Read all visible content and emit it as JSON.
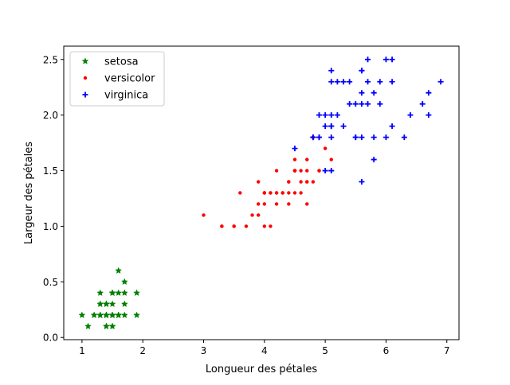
{
  "chart_data": {
    "type": "scatter",
    "title": "",
    "xlabel": "Longueur des pétales",
    "ylabel": "Largeur des pétales",
    "xlim": [
      0.7,
      7.2
    ],
    "ylim": [
      -0.02,
      2.62
    ],
    "xticks": [
      1,
      2,
      3,
      4,
      5,
      6,
      7
    ],
    "yticks": [
      0.0,
      0.5,
      1.0,
      1.5,
      2.0,
      2.5
    ],
    "xtick_labels": [
      "1",
      "2",
      "3",
      "4",
      "5",
      "6",
      "7"
    ],
    "ytick_labels": [
      "0.0",
      "0.5",
      "1.0",
      "1.5",
      "2.0",
      "2.5"
    ],
    "grid": false,
    "legend": "top-left",
    "series": [
      {
        "name": "setosa",
        "color": "#008000",
        "marker": "star",
        "points": [
          [
            1.4,
            0.2
          ],
          [
            1.4,
            0.2
          ],
          [
            1.3,
            0.2
          ],
          [
            1.5,
            0.2
          ],
          [
            1.4,
            0.2
          ],
          [
            1.7,
            0.4
          ],
          [
            1.4,
            0.3
          ],
          [
            1.5,
            0.2
          ],
          [
            1.4,
            0.2
          ],
          [
            1.5,
            0.1
          ],
          [
            1.5,
            0.2
          ],
          [
            1.6,
            0.2
          ],
          [
            1.4,
            0.1
          ],
          [
            1.1,
            0.1
          ],
          [
            1.2,
            0.2
          ],
          [
            1.5,
            0.4
          ],
          [
            1.3,
            0.4
          ],
          [
            1.4,
            0.3
          ],
          [
            1.7,
            0.3
          ],
          [
            1.5,
            0.3
          ],
          [
            1.7,
            0.2
          ],
          [
            1.5,
            0.4
          ],
          [
            1.0,
            0.2
          ],
          [
            1.7,
            0.5
          ],
          [
            1.9,
            0.2
          ],
          [
            1.6,
            0.2
          ],
          [
            1.6,
            0.4
          ],
          [
            1.5,
            0.2
          ],
          [
            1.4,
            0.2
          ],
          [
            1.6,
            0.2
          ],
          [
            1.6,
            0.2
          ],
          [
            1.5,
            0.4
          ],
          [
            1.5,
            0.1
          ],
          [
            1.4,
            0.2
          ],
          [
            1.5,
            0.2
          ],
          [
            1.2,
            0.2
          ],
          [
            1.3,
            0.2
          ],
          [
            1.4,
            0.1
          ],
          [
            1.3,
            0.2
          ],
          [
            1.5,
            0.2
          ],
          [
            1.3,
            0.3
          ],
          [
            1.3,
            0.3
          ],
          [
            1.3,
            0.2
          ],
          [
            1.6,
            0.6
          ],
          [
            1.9,
            0.4
          ],
          [
            1.4,
            0.3
          ],
          [
            1.6,
            0.2
          ],
          [
            1.4,
            0.2
          ],
          [
            1.5,
            0.2
          ],
          [
            1.4,
            0.2
          ]
        ]
      },
      {
        "name": "versicolor",
        "color": "#ff0000",
        "marker": "point",
        "points": [
          [
            4.7,
            1.4
          ],
          [
            4.5,
            1.5
          ],
          [
            4.9,
            1.5
          ],
          [
            4.0,
            1.3
          ],
          [
            4.6,
            1.5
          ],
          [
            4.5,
            1.3
          ],
          [
            4.7,
            1.6
          ],
          [
            3.3,
            1.0
          ],
          [
            4.6,
            1.3
          ],
          [
            3.9,
            1.4
          ],
          [
            3.5,
            1.0
          ],
          [
            4.2,
            1.5
          ],
          [
            4.0,
            1.0
          ],
          [
            4.7,
            1.4
          ],
          [
            3.6,
            1.3
          ],
          [
            4.4,
            1.4
          ],
          [
            4.5,
            1.5
          ],
          [
            4.1,
            1.0
          ],
          [
            4.5,
            1.5
          ],
          [
            3.9,
            1.1
          ],
          [
            4.8,
            1.8
          ],
          [
            4.0,
            1.3
          ],
          [
            4.9,
            1.5
          ],
          [
            4.7,
            1.2
          ],
          [
            4.3,
            1.3
          ],
          [
            4.4,
            1.4
          ],
          [
            4.8,
            1.4
          ],
          [
            5.0,
            1.7
          ],
          [
            4.5,
            1.5
          ],
          [
            3.5,
            1.0
          ],
          [
            3.8,
            1.1
          ],
          [
            3.7,
            1.0
          ],
          [
            3.9,
            1.2
          ],
          [
            5.1,
            1.6
          ],
          [
            4.5,
            1.5
          ],
          [
            4.5,
            1.6
          ],
          [
            4.7,
            1.5
          ],
          [
            4.4,
            1.3
          ],
          [
            4.1,
            1.3
          ],
          [
            4.0,
            1.3
          ],
          [
            4.4,
            1.2
          ],
          [
            4.6,
            1.4
          ],
          [
            4.0,
            1.2
          ],
          [
            3.3,
            1.0
          ],
          [
            4.2,
            1.3
          ],
          [
            4.2,
            1.2
          ],
          [
            4.2,
            1.3
          ],
          [
            4.3,
            1.3
          ],
          [
            3.0,
            1.1
          ],
          [
            4.1,
            1.3
          ]
        ]
      },
      {
        "name": "virginica",
        "color": "#0000ff",
        "marker": "plus",
        "points": [
          [
            6.0,
            2.5
          ],
          [
            5.1,
            1.9
          ],
          [
            5.9,
            2.1
          ],
          [
            5.6,
            1.8
          ],
          [
            5.8,
            2.2
          ],
          [
            6.6,
            2.1
          ],
          [
            4.5,
            1.7
          ],
          [
            6.3,
            1.8
          ],
          [
            5.8,
            1.8
          ],
          [
            6.1,
            2.5
          ],
          [
            5.1,
            2.0
          ],
          [
            5.3,
            1.9
          ],
          [
            5.5,
            2.1
          ],
          [
            5.0,
            2.0
          ],
          [
            5.1,
            2.4
          ],
          [
            5.3,
            2.3
          ],
          [
            5.5,
            1.8
          ],
          [
            6.7,
            2.2
          ],
          [
            6.9,
            2.3
          ],
          [
            5.0,
            1.5
          ],
          [
            5.7,
            2.3
          ],
          [
            4.9,
            2.0
          ],
          [
            6.7,
            2.0
          ],
          [
            4.9,
            1.8
          ],
          [
            5.7,
            2.1
          ],
          [
            6.0,
            1.8
          ],
          [
            4.8,
            1.8
          ],
          [
            4.9,
            1.8
          ],
          [
            5.6,
            2.1
          ],
          [
            5.8,
            1.6
          ],
          [
            6.1,
            1.9
          ],
          [
            6.4,
            2.0
          ],
          [
            5.6,
            2.2
          ],
          [
            5.1,
            1.5
          ],
          [
            5.6,
            1.4
          ],
          [
            6.1,
            2.3
          ],
          [
            5.6,
            2.4
          ],
          [
            5.5,
            1.8
          ],
          [
            4.8,
            1.8
          ],
          [
            5.4,
            2.1
          ],
          [
            5.6,
            2.4
          ],
          [
            5.1,
            2.3
          ],
          [
            5.1,
            1.9
          ],
          [
            5.9,
            2.3
          ],
          [
            5.7,
            2.5
          ],
          [
            5.2,
            2.3
          ],
          [
            5.0,
            1.9
          ],
          [
            5.2,
            2.0
          ],
          [
            5.4,
            2.3
          ],
          [
            5.1,
            1.8
          ]
        ]
      }
    ]
  }
}
